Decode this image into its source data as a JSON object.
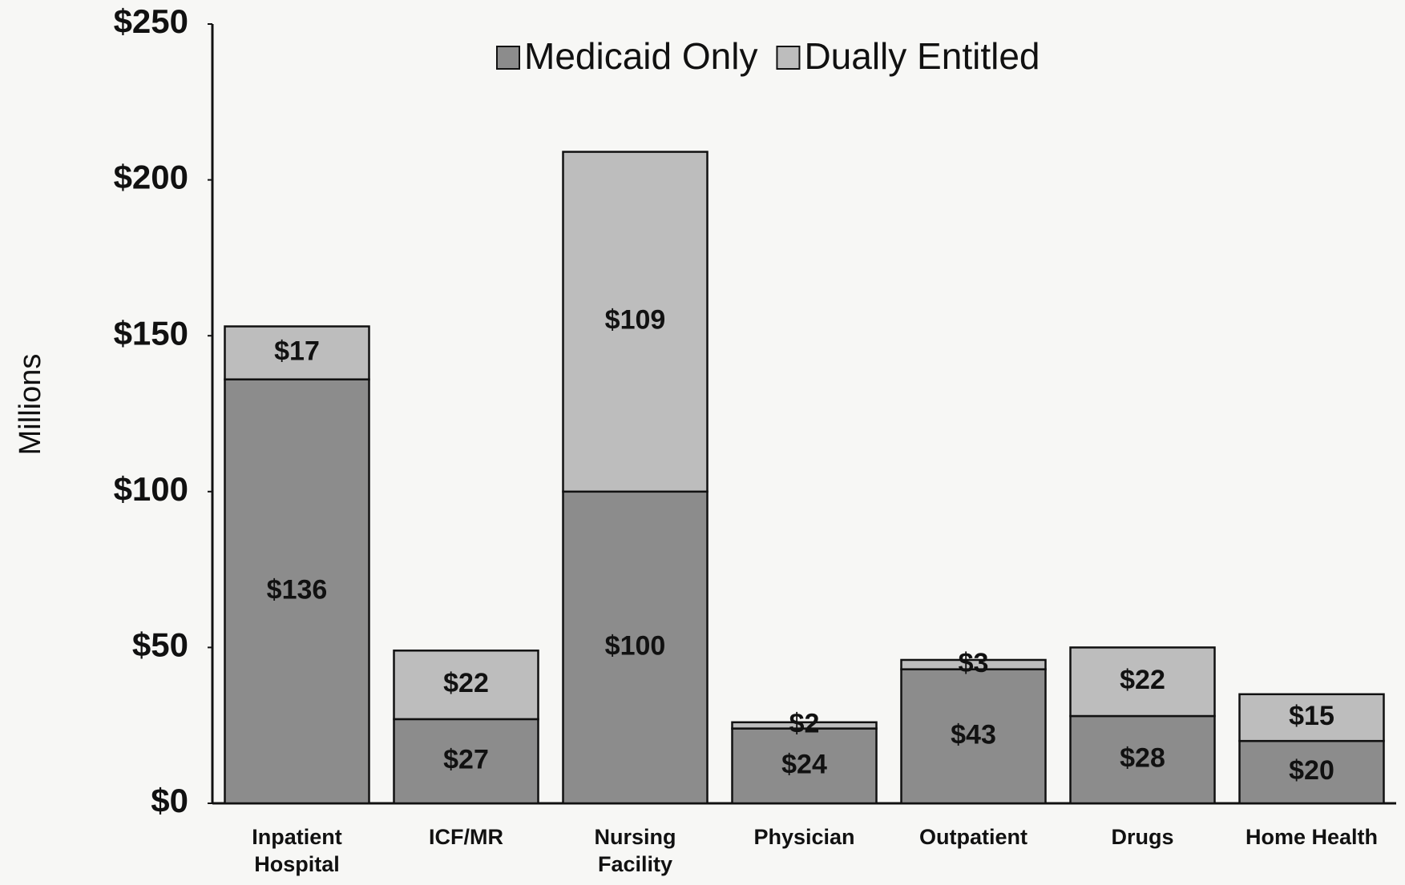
{
  "chart_data": {
    "type": "stacked_bar",
    "y_label": "Millions",
    "categories": [
      "Inpatient\nHospital",
      "ICF/MR",
      "Nursing\nFacility",
      "Physician",
      "Outpatient",
      "Drugs",
      "Home Health"
    ],
    "series": [
      {
        "name": "Medicaid Only",
        "color": "#8c8c8c",
        "values": [
          136,
          27,
          100,
          24,
          43,
          28,
          20
        ],
        "value_labels": [
          "$136",
          "$27",
          "$100",
          "$24",
          "$43",
          "$28",
          "$20"
        ]
      },
      {
        "name": "Dually Entitled",
        "color": "#bdbdbd",
        "values": [
          17,
          22,
          109,
          2,
          3,
          22,
          15
        ],
        "value_labels": [
          "$17",
          "$22",
          "$109",
          "$2",
          "$3",
          "$22",
          "$15"
        ]
      }
    ],
    "ylim": [
      0,
      250
    ],
    "yticks": [
      {
        "value": 0,
        "label": "$0"
      },
      {
        "value": 50,
        "label": "$50"
      },
      {
        "value": 100,
        "label": "$100"
      },
      {
        "value": 150,
        "label": "$150"
      },
      {
        "value": 200,
        "label": "$200"
      },
      {
        "value": 250,
        "label": "$250"
      }
    ],
    "legend": "top"
  }
}
